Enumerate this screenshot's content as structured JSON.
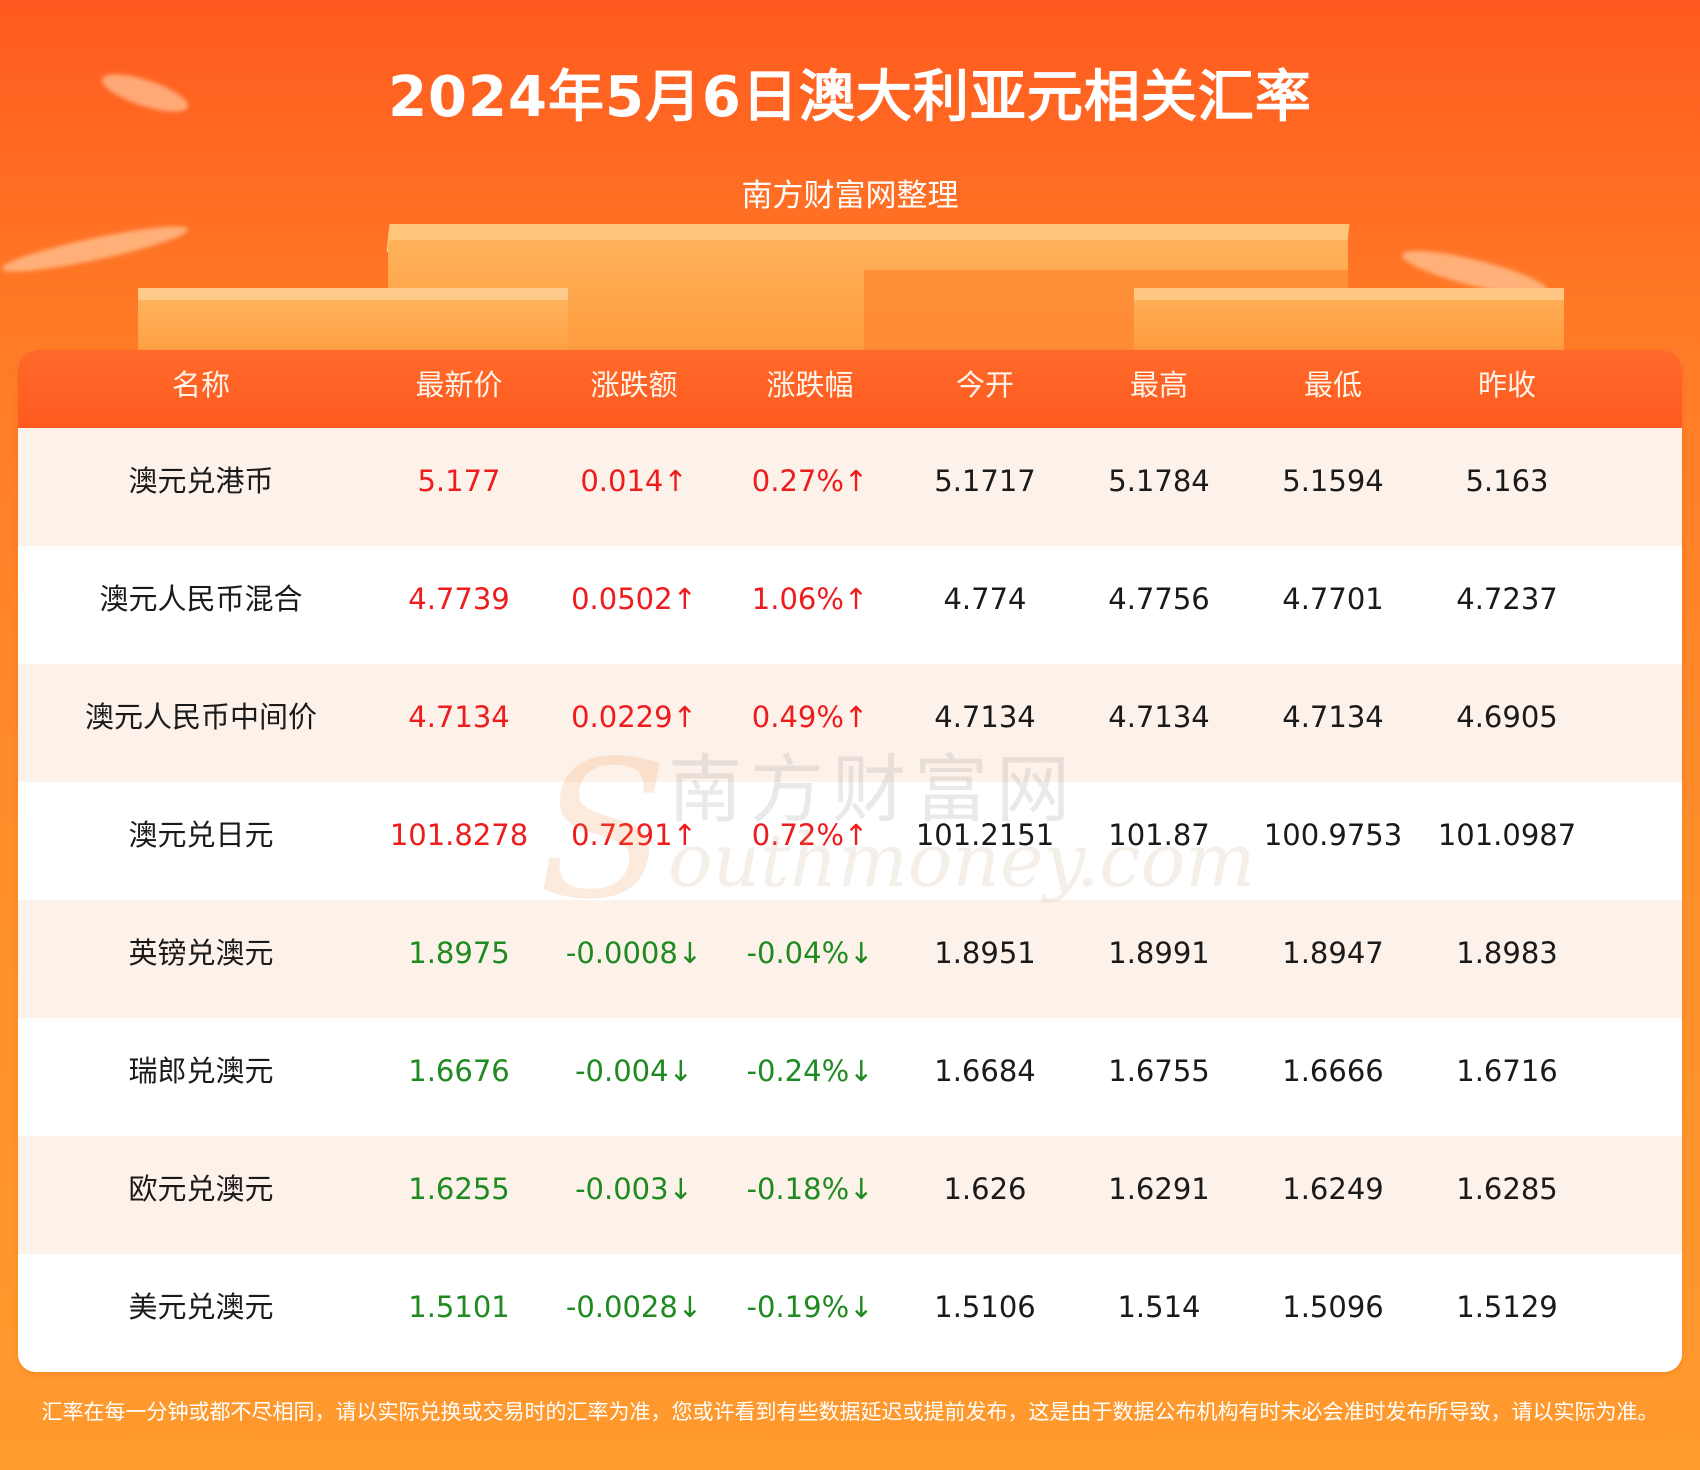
{
  "header": {
    "title": "2024年5月6日澳大利亚元相关汇率",
    "subtitle": "南方财富网整理"
  },
  "table": {
    "columns": [
      "名称",
      "最新价",
      "涨跌额",
      "涨跌幅",
      "今开",
      "最高",
      "最低",
      "昨收"
    ],
    "rows": [
      {
        "name": "澳元兑港币",
        "latest": "5.177",
        "change": "0.014↑",
        "change_pct": "0.27%↑",
        "open": "5.1717",
        "high": "5.1784",
        "low": "5.1594",
        "prev_close": "5.163",
        "direction": "up"
      },
      {
        "name": "澳元人民币混合",
        "latest": "4.7739",
        "change": "0.0502↑",
        "change_pct": "1.06%↑",
        "open": "4.774",
        "high": "4.7756",
        "low": "4.7701",
        "prev_close": "4.7237",
        "direction": "up"
      },
      {
        "name": "澳元人民币中间价",
        "latest": "4.7134",
        "change": "0.0229↑",
        "change_pct": "0.49%↑",
        "open": "4.7134",
        "high": "4.7134",
        "low": "4.7134",
        "prev_close": "4.6905",
        "direction": "up"
      },
      {
        "name": "澳元兑日元",
        "latest": "101.8278",
        "change": "0.7291↑",
        "change_pct": "0.72%↑",
        "open": "101.2151",
        "high": "101.87",
        "low": "100.9753",
        "prev_close": "101.0987",
        "direction": "up"
      },
      {
        "name": "英镑兑澳元",
        "latest": "1.8975",
        "change": "-0.0008↓",
        "change_pct": "-0.04%↓",
        "open": "1.8951",
        "high": "1.8991",
        "low": "1.8947",
        "prev_close": "1.8983",
        "direction": "down"
      },
      {
        "name": "瑞郎兑澳元",
        "latest": "1.6676",
        "change": "-0.004↓",
        "change_pct": "-0.24%↓",
        "open": "1.6684",
        "high": "1.6755",
        "low": "1.6666",
        "prev_close": "1.6716",
        "direction": "down"
      },
      {
        "name": "欧元兑澳元",
        "latest": "1.6255",
        "change": "-0.003↓",
        "change_pct": "-0.18%↓",
        "open": "1.626",
        "high": "1.6291",
        "low": "1.6249",
        "prev_close": "1.6285",
        "direction": "down"
      },
      {
        "name": "美元兑澳元",
        "latest": "1.5101",
        "change": "-0.0028↓",
        "change_pct": "-0.19%↓",
        "open": "1.5106",
        "high": "1.514",
        "low": "1.5096",
        "prev_close": "1.5129",
        "direction": "down"
      }
    ]
  },
  "watermark": {
    "letter": "S",
    "cn": "南方财富网",
    "en": "outhmoney.com"
  },
  "footnote": "汇率在每一分钟或都不尽相同，请以实际兑换或交易时的汇率为准，您或许看到有些数据延迟或提前发布，这是由于数据公布机构有时未必会准时发布所导致，请以实际为准。",
  "colors": {
    "up": "#ee1c1c",
    "down": "#1f8a1f",
    "header_orange": "#ff5a1f",
    "row_alt": "#fdf2ea"
  }
}
